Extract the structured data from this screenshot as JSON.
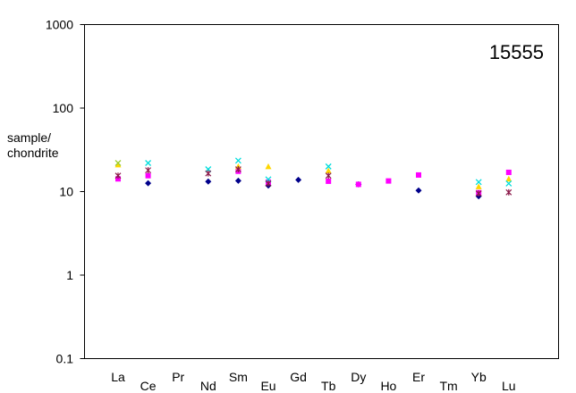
{
  "chart_data": {
    "type": "scatter",
    "title": "15555",
    "xlabel": "",
    "ylabel": "sample/\nchondrite",
    "yscale": "log",
    "ylim": [
      0.1,
      1000
    ],
    "y_ticks": [
      "0.1",
      "1",
      "10",
      "100",
      "1000"
    ],
    "categories": [
      "La",
      "Ce",
      "Pr",
      "Nd",
      "Sm",
      "Eu",
      "Gd",
      "Tb",
      "Dy",
      "Ho",
      "Er",
      "Tm",
      "Yb",
      "Lu"
    ],
    "grid": false,
    "legend": "none",
    "series": [
      {
        "color": "#00008B",
        "marker": "diamond",
        "values": [
          null,
          12.6,
          null,
          13.2,
          13.5,
          11.8,
          13.8,
          null,
          12.2,
          null,
          10.3,
          null,
          8.8,
          null
        ]
      },
      {
        "color": "#FF00FF",
        "marker": "square",
        "values": [
          14.2,
          15.5,
          null,
          null,
          17.5,
          13.0,
          null,
          13.3,
          12.2,
          13.4,
          15.8,
          null,
          9.7,
          17.0
        ]
      },
      {
        "color": "#FFD700",
        "marker": "triangle",
        "values": [
          21.0,
          null,
          null,
          null,
          20.0,
          20.0,
          null,
          17.8,
          null,
          null,
          null,
          null,
          11.5,
          14.2
        ]
      },
      {
        "color": "#00DDDD",
        "marker": "x",
        "values": [
          null,
          22.0,
          null,
          18.5,
          23.5,
          14.0,
          null,
          20.0,
          null,
          null,
          null,
          null,
          13.0,
          12.5
        ]
      },
      {
        "color": "#8B1A4A",
        "marker": "star",
        "values": [
          15.5,
          18.0,
          null,
          16.5,
          18.5,
          12.5,
          null,
          15.5,
          null,
          null,
          null,
          null,
          9.5,
          9.8
        ]
      },
      {
        "color": "#9ACD32",
        "marker": "x",
        "values": [
          22.0,
          null,
          null,
          null,
          null,
          null,
          null,
          null,
          null,
          null,
          null,
          null,
          null,
          null
        ]
      }
    ]
  }
}
